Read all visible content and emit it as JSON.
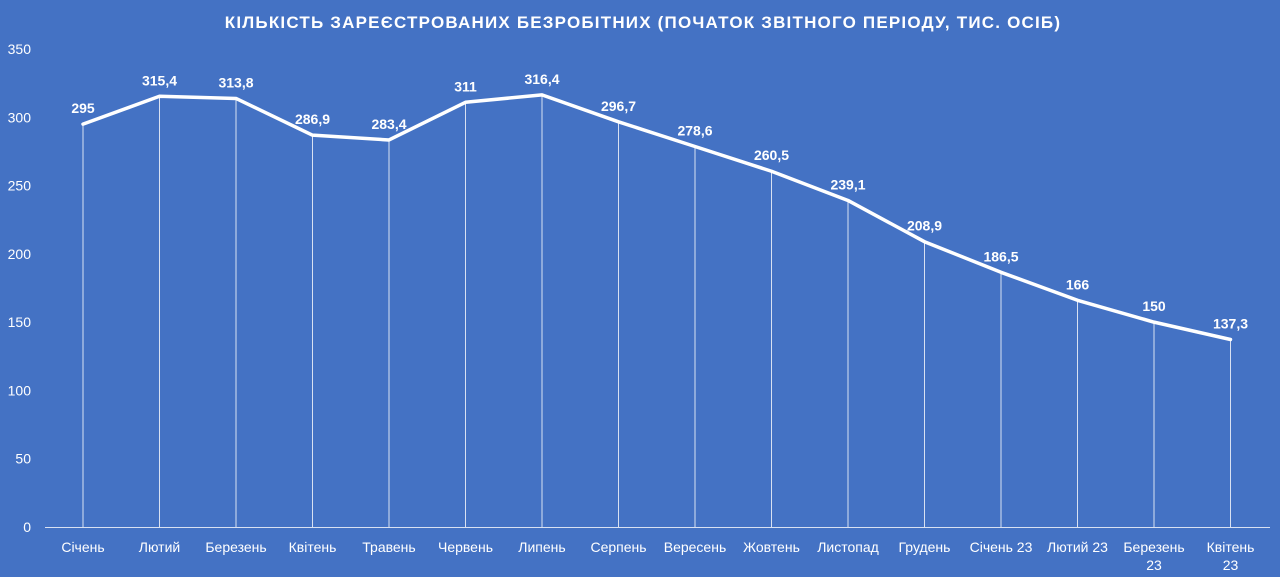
{
  "chart_data": {
    "type": "line",
    "title": "КІЛЬКІСТЬ ЗАРЕЄСТРОВАНИХ БЕЗРОБІТНИХ (ПОЧАТОК ЗВІТНОГО ПЕРІОДУ, ТИС. ОСІБ)",
    "xlabel": "",
    "ylabel": "",
    "ylim": [
      0,
      350
    ],
    "yticks": [
      "0",
      "50",
      "100",
      "150",
      "200",
      "250",
      "300",
      "350"
    ],
    "categories": [
      [
        "Січень"
      ],
      [
        "Лютий"
      ],
      [
        "Березень"
      ],
      [
        "Квітень"
      ],
      [
        "Травень"
      ],
      [
        "Червень"
      ],
      [
        "Липень"
      ],
      [
        "Серпень"
      ],
      [
        "Вересень"
      ],
      [
        "Жовтень"
      ],
      [
        "Листопад"
      ],
      [
        "Грудень"
      ],
      [
        "Січень 23"
      ],
      [
        "Лютий 23"
      ],
      [
        "Березень",
        "23"
      ],
      [
        "Квітень",
        "23"
      ]
    ],
    "values": [
      295,
      315.4,
      313.8,
      286.9,
      283.4,
      311,
      316.4,
      296.7,
      278.6,
      260.5,
      239.1,
      208.9,
      186.5,
      166,
      150,
      137.3
    ],
    "data_labels": [
      "295",
      "315,4",
      "313,8",
      "286,9",
      "283,4",
      "311",
      "316,4",
      "296,7",
      "278,6",
      "260,5",
      "239,1",
      "208,9",
      "186,5",
      "166",
      "150",
      "137,3"
    ],
    "grid": "vertical drop lines",
    "legend": "none",
    "colors": {
      "background": "#4472c4",
      "line": "#ffffff",
      "text": "#ffffff"
    }
  }
}
